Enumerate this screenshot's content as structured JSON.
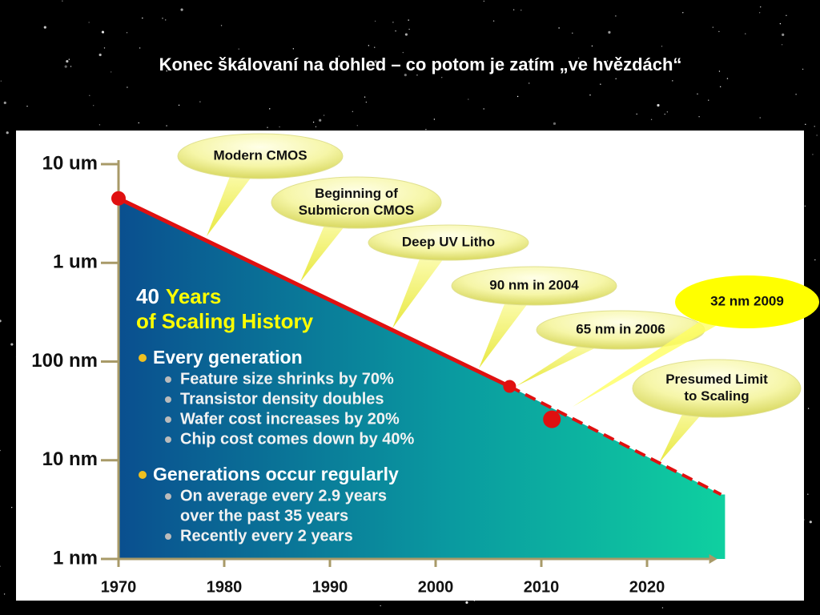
{
  "chart_data": {
    "type": "line",
    "title": "Konec škálovaní na dohled – co potom je zatím „ve hvězdách“",
    "log_scale_y": true,
    "xlim": [
      1970,
      2028
    ],
    "xticks": [
      1970,
      1980,
      1990,
      2000,
      2010,
      2020
    ],
    "ylim": [
      1,
      10000
    ],
    "yticks": [
      {
        "value": 10000,
        "label": "10 um"
      },
      {
        "value": 1000,
        "label": "1 um"
      },
      {
        "value": 100,
        "label": "100 nm"
      },
      {
        "value": 10,
        "label": "10 nm"
      },
      {
        "value": 1,
        "label": "1 nm"
      }
    ],
    "series": [
      {
        "color": "#e01010",
        "style": "solid",
        "x": [
          1970,
          2007
        ],
        "values": [
          4500,
          56
        ]
      },
      {
        "color": "#e01010",
        "style": "dashed",
        "x": [
          2007,
          2027
        ],
        "values": [
          56,
          4.5
        ]
      }
    ],
    "markers": {
      "color": "#e01010",
      "x": [
        1970,
        2007,
        2011
      ],
      "values": [
        4500,
        56,
        26
      ]
    },
    "annotations": [
      [
        "Modern CMOS"
      ],
      [
        "Beginning of",
        "Submicron CMOS"
      ],
      [
        "Deep UV Litho"
      ],
      [
        "90 nm in 2004"
      ],
      [
        "65 nm in 2006"
      ],
      [
        "32 nm 2009"
      ],
      [
        "Presumed Limit",
        "to Scaling"
      ]
    ],
    "text_block": {
      "heading_number": "40",
      "heading": "Years",
      "heading_line2": "of Scaling History",
      "bullets": [
        {
          "text": "Every generation",
          "sub": [
            [
              "Feature size shrinks by 70%"
            ],
            [
              "Transistor density doubles"
            ],
            [
              "Wafer cost increases by 20%"
            ],
            [
              "Chip cost comes down by 40%"
            ]
          ]
        },
        {
          "text": "Generations occur regularly",
          "sub": [
            [
              "On average every 2.9 years",
              "over the past 35 years"
            ],
            [
              "Recently every 2 years"
            ]
          ]
        }
      ]
    }
  }
}
